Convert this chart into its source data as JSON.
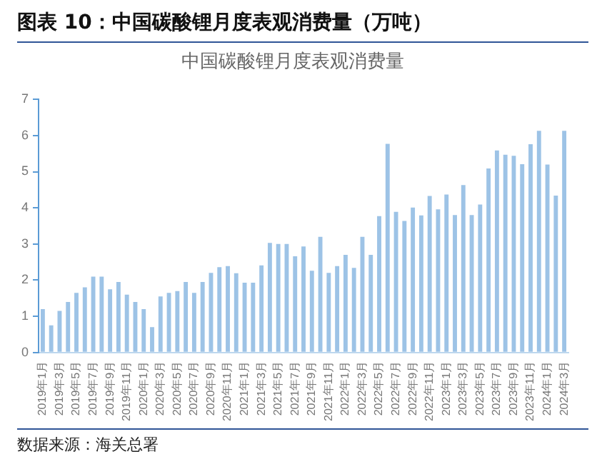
{
  "chart_data": {
    "type": "bar",
    "title": "图表 10：中国碳酸锂月度表观消费量（万吨）",
    "subtitle": "中国碳酸锂月度表观消费量",
    "categories": [
      "2019年1月",
      null,
      "2019年3月",
      null,
      "2019年5月",
      null,
      "2019年7月",
      null,
      "2019年9月",
      null,
      "2019年11月",
      null,
      "2020年1月",
      null,
      "2020年3月",
      null,
      "2020年5月",
      null,
      "2020年7月",
      null,
      "2020年9月",
      null,
      "2020年11月",
      null,
      "2021年1月",
      null,
      "2021年3月",
      null,
      "2021年5月",
      null,
      "2021年7月",
      null,
      "2021年9月",
      null,
      "2021年11月",
      null,
      "2022年1月",
      null,
      "2022年3月",
      null,
      "2022年5月",
      null,
      "2022年7月",
      null,
      "2022年9月",
      null,
      "2022年11月",
      null,
      "2023年1月",
      null,
      "2023年3月",
      null,
      "2023年5月",
      null,
      "2023年7月",
      null,
      "2023年9月",
      null,
      "2023年11月",
      null,
      "2024年1月",
      null,
      "2024年3月"
    ],
    "values": [
      1.2,
      0.75,
      1.15,
      1.4,
      1.65,
      1.8,
      2.1,
      2.1,
      1.75,
      1.95,
      1.6,
      1.4,
      1.2,
      0.7,
      1.55,
      1.65,
      1.7,
      1.95,
      1.65,
      1.95,
      2.2,
      2.36,
      2.39,
      2.19,
      1.93,
      1.93,
      2.41,
      3.03,
      3.0,
      3.0,
      2.66,
      2.93,
      2.26,
      3.2,
      2.2,
      2.39,
      2.7,
      2.34,
      3.2,
      2.7,
      3.77,
      5.77,
      3.89,
      3.64,
      4.01,
      3.79,
      4.33,
      3.96,
      4.37,
      3.8,
      4.63,
      3.8,
      4.09,
      5.09,
      5.59,
      5.47,
      5.44,
      5.21,
      5.76,
      6.13,
      5.2,
      4.34,
      6.13
    ],
    "color": "#9dc3e6",
    "ylim": [
      0,
      7
    ],
    "yticks": [
      0,
      1,
      2,
      3,
      4,
      5,
      6,
      7
    ],
    "grid": false,
    "legend": false,
    "annotations": [
      "数据来源：海关总署"
    ]
  }
}
